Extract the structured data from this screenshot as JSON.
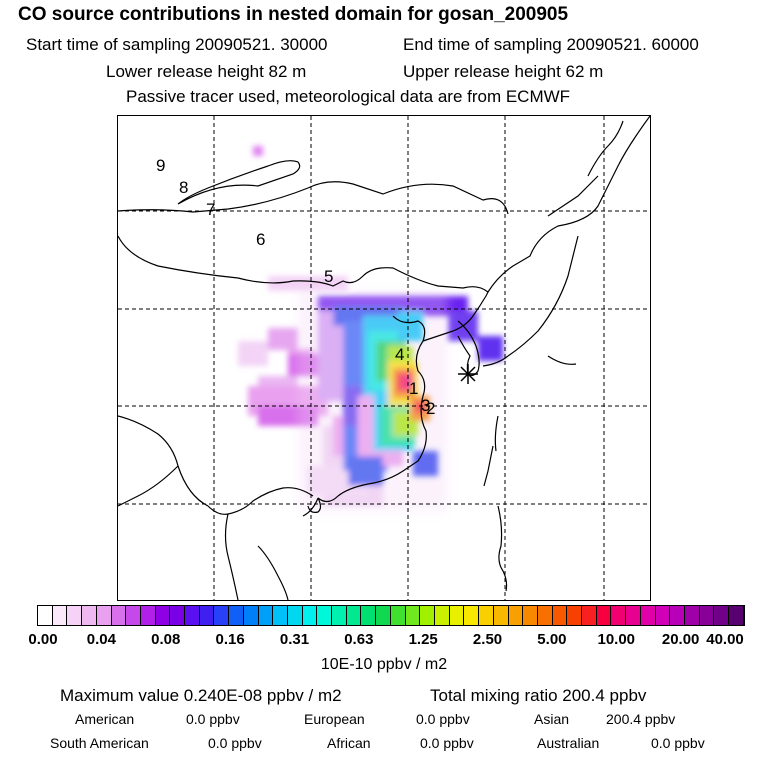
{
  "header": {
    "title": "CO  source contributions in nested domain for gosan_200905",
    "start_time": "Start time of sampling 20090521. 30000",
    "end_time": "End time of sampling 20090521. 60000",
    "lower_height": "Lower release height   82 m",
    "upper_height": "Upper release height   62 m",
    "note": "Passive tracer used, meteorological data are from ECMWF"
  },
  "map": {
    "trajectory_labels": [
      "1",
      "2",
      "3",
      "4",
      "5",
      "6",
      "7",
      "8",
      "9"
    ],
    "receptor": "gosan",
    "colors": {
      "background": "#ffffff",
      "outline": "#000000"
    }
  },
  "colorbar": {
    "tick_labels": [
      "0.00",
      "0.04",
      "0.08",
      "0.16",
      "0.31",
      "0.63",
      "1.25",
      "2.50",
      "5.00",
      "10.00",
      "20.00",
      "40.00"
    ],
    "colors": [
      "#ffffff",
      "#fbe8fb",
      "#f6d2f6",
      "#f0b8f0",
      "#e9a0ef",
      "#d870ec",
      "#c648ea",
      "#b020e8",
      "#9000e4",
      "#7a00e6",
      "#5a10f0",
      "#4020f0",
      "#2840f8",
      "#1060f8",
      "#0080f8",
      "#00a0f8",
      "#00c0f8",
      "#00d8f0",
      "#00f0f0",
      "#00f8d8",
      "#00f0b0",
      "#00e890",
      "#00e070",
      "#10d850",
      "#40e030",
      "#70e820",
      "#a0f000",
      "#c8f000",
      "#e8f000",
      "#f8e800",
      "#f8d000",
      "#f8b800",
      "#f8a000",
      "#f88800",
      "#f87000",
      "#f85800",
      "#f84000",
      "#f82020",
      "#f80040",
      "#f00070",
      "#e80090",
      "#e000a8",
      "#d000b8",
      "#b800b8",
      "#a000a8",
      "#880098",
      "#700088",
      "#580070"
    ],
    "units": "10E-10 ppbv / m2"
  },
  "stats": {
    "maximum": "Maximum value  0.240E-08 ppbv / m2",
    "total": "Total mixing ratio      200.4 ppbv",
    "american": "American",
    "american_val": "0.0 ppbv",
    "european": "European",
    "european_val": "0.0 ppbv",
    "asian": "Asian",
    "asian_val": "200.4 ppbv",
    "south_american": "South American",
    "south_american_val": "0.0 ppbv",
    "african": "African",
    "african_val": "0.0 ppbv",
    "australian": "Australian",
    "australian_val": "0.0 ppbv"
  }
}
